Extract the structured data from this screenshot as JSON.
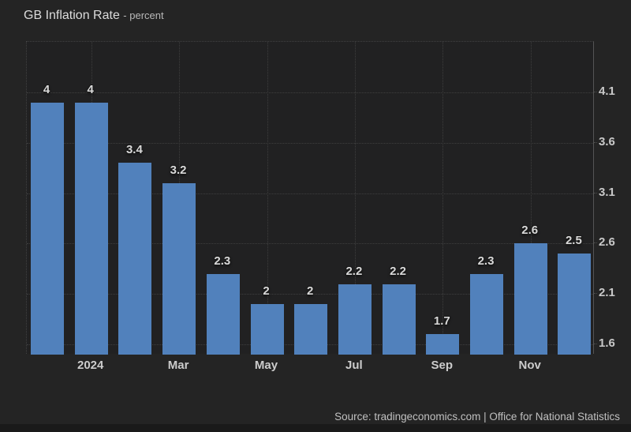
{
  "title": {
    "main": "GB Inflation Rate",
    "sub": "- percent"
  },
  "source": "Source: tradingeconomics.com | Office for National Statistics",
  "colors": {
    "bar": "#5181bc",
    "background": "#242424",
    "plot_background": "#212122",
    "gridline": "#3e3e3e",
    "axis_line": "#555555",
    "label_text": "#d9d9d9"
  },
  "chart_data": {
    "type": "bar",
    "title": "GB Inflation Rate",
    "unit": "percent",
    "values": [
      4,
      4,
      3.4,
      3.2,
      2.3,
      2,
      2,
      2.2,
      2.2,
      1.7,
      2.3,
      2.6,
      2.5
    ],
    "bar_labels": [
      "4",
      "4",
      "3.4",
      "3.2",
      "2.3",
      "2",
      "2",
      "2.2",
      "2.2",
      "1.7",
      "2.3",
      "2.6",
      "2.5"
    ],
    "xticks": [
      {
        "label": "2024",
        "bar_index": 1
      },
      {
        "label": "Mar",
        "bar_index": 3
      },
      {
        "label": "May",
        "bar_index": 5
      },
      {
        "label": "Jul",
        "bar_index": 7
      },
      {
        "label": "Sep",
        "bar_index": 9
      },
      {
        "label": "Nov",
        "bar_index": 11
      }
    ],
    "yticks": [
      "4.1",
      "3.6",
      "3.1",
      "2.6",
      "2.1",
      "1.6"
    ],
    "ylim": [
      1.5,
      4.6
    ],
    "grid": true,
    "legend_position": "none",
    "yaxis_position": "right"
  }
}
